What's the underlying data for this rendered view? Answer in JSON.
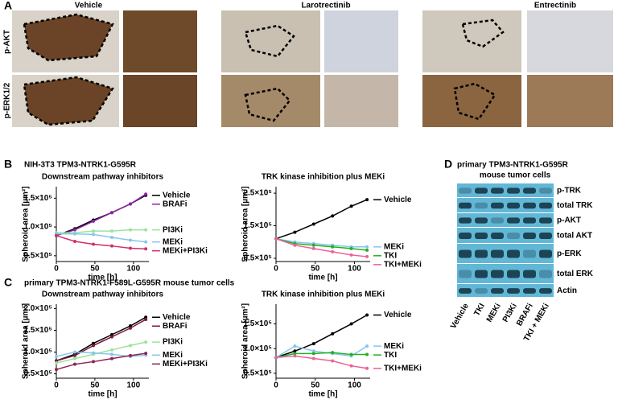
{
  "panel_a": {
    "letter": "A",
    "columns": [
      "Vehicle",
      "Larotrectinib",
      "Entrectinib"
    ],
    "rows": [
      "p-AKT",
      "p-ERK1/2"
    ]
  },
  "panel_b": {
    "letter": "B",
    "title": "NIH-3T3 TPM3-NTRK1-G595R"
  },
  "panel_c": {
    "letter": "C",
    "title": "primary TPM3-NTRK1-F589L-G595R mouse tumor cells"
  },
  "panel_d": {
    "letter": "D",
    "title": [
      "primary TPM3-NTRK1-G595R",
      "mouse tumor cells"
    ],
    "rows": [
      "p-TRK",
      "total TRK",
      "p-AKT",
      "total AKT",
      "p-ERK",
      "total ERK",
      "Actin"
    ],
    "lanes": [
      "Vehicle",
      "TKI",
      "MEKi",
      "PI3Ki",
      "BRAFi",
      "TKI + MEKi"
    ]
  },
  "chart_data": [
    {
      "type": "line",
      "title": "Downstream pathway inhibitors",
      "xlabel": "time [h]",
      "ylabel": "Spheroid area [µm²]",
      "x": [
        0,
        24,
        48,
        72,
        96,
        116
      ],
      "xlim": [
        0,
        120
      ],
      "xticks": [
        0,
        50,
        100
      ],
      "ylim": [
        40000,
        170000
      ],
      "yticks": [
        {
          "value": 50000,
          "label": "0.5×10⁵"
        },
        {
          "value": 100000,
          "label": "1.0×10⁵"
        },
        {
          "value": 150000,
          "label": "1.5×10⁵"
        }
      ],
      "series": [
        {
          "name": "Vehicle",
          "color": "#000000",
          "values": [
            85000,
            97000,
            112000,
            125000,
            140000,
            155000
          ]
        },
        {
          "name": "BRAFi",
          "color": "#8e24aa",
          "values": [
            85000,
            95000,
            110000,
            125000,
            140000,
            157000
          ]
        },
        {
          "name": "PI3Ki",
          "color": "#9be39b",
          "values": [
            90000,
            90000,
            93000,
            93000,
            95000,
            95000
          ]
        },
        {
          "name": "MEKi",
          "color": "#86c5ee",
          "values": [
            88000,
            88000,
            87000,
            82000,
            77000,
            74000
          ]
        },
        {
          "name": "MEKi+PI3Ki",
          "color": "#d0306a",
          "values": [
            85000,
            75000,
            70000,
            67000,
            63000,
            62000
          ]
        }
      ]
    },
    {
      "type": "line",
      "title": "TRK kinase inhibition plus MEKi",
      "xlabel": "time [h]",
      "ylabel": "Spheroid area [µm²]",
      "x": [
        0,
        24,
        48,
        72,
        96,
        116
      ],
      "xlim": [
        0,
        120
      ],
      "xticks": [
        0,
        50,
        100
      ],
      "ylim": [
        40000,
        270000
      ],
      "yticks": [
        {
          "value": 50000,
          "label": "0.5×10⁵"
        },
        {
          "value": 150000,
          "label": "1.5×10⁵"
        },
        {
          "value": 250000,
          "label": "2.5×10⁵"
        }
      ],
      "series": [
        {
          "name": "Vehicle",
          "color": "#000000",
          "values": [
            110000,
            130000,
            155000,
            180000,
            210000,
            230000
          ]
        },
        {
          "name": "MEKi",
          "color": "#86c5ee",
          "values": [
            110000,
            100000,
            95000,
            90000,
            85000,
            85000
          ]
        },
        {
          "name": "TKI",
          "color": "#22b022",
          "values": [
            110000,
            95000,
            90000,
            85000,
            80000,
            75000
          ]
        },
        {
          "name": "TKI+MEKi",
          "color": "#f0609a",
          "values": [
            110000,
            90000,
            80000,
            70000,
            60000,
            55000
          ]
        }
      ]
    },
    {
      "type": "line",
      "title": "Downstream pathway inhibitors",
      "xlabel": "time [h]",
      "ylabel": "Spheroid area [µm²]",
      "x": [
        0,
        24,
        48,
        72,
        96,
        116
      ],
      "xlim": [
        0,
        120
      ],
      "xticks": [
        0,
        50,
        100
      ],
      "ylim": [
        40000,
        210000
      ],
      "yticks": [
        {
          "value": 50000,
          "label": "0.5×10⁵"
        },
        {
          "value": 100000,
          "label": "1.0×10⁵"
        },
        {
          "value": 150000,
          "label": "1.5×10⁵"
        },
        {
          "value": 200000,
          "label": "2.0×10⁵"
        }
      ],
      "series": [
        {
          "name": "Vehicle",
          "color": "#000000",
          "values": [
            80000,
            95000,
            120000,
            140000,
            160000,
            180000
          ]
        },
        {
          "name": "BRAFi",
          "color": "#7a1b3c",
          "values": [
            80000,
            92000,
            115000,
            135000,
            155000,
            175000
          ]
        },
        {
          "name": "PI3Ki",
          "color": "#9be39b",
          "values": [
            75000,
            85000,
            95000,
            105000,
            115000,
            123000
          ]
        },
        {
          "name": "MEKi",
          "color": "#86c5ee",
          "values": [
            90000,
            100000,
            98000,
            95000,
            90000,
            93000
          ]
        },
        {
          "name": "MEKi+PI3Ki",
          "color": "#8b2252",
          "values": [
            60000,
            72000,
            78000,
            85000,
            92000,
            97000
          ]
        }
      ]
    },
    {
      "type": "line",
      "title": "TRK kinase inhibition plus MEKi",
      "xlabel": "time [h]",
      "ylabel": "Spheroid area [µm²]",
      "x": [
        0,
        24,
        48,
        72,
        96,
        116
      ],
      "xlim": [
        0,
        120
      ],
      "xticks": [
        0,
        50,
        100
      ],
      "ylim": [
        40000,
        190000
      ],
      "yticks": [
        {
          "value": 50000,
          "label": "0.5×10⁵"
        },
        {
          "value": 100000,
          "label": "1.0×10⁵"
        },
        {
          "value": 150000,
          "label": "1.5×10⁵"
        }
      ],
      "series": [
        {
          "name": "Vehicle",
          "color": "#000000",
          "values": [
            82000,
            95000,
            110000,
            130000,
            150000,
            168000
          ]
        },
        {
          "name": "MEKi",
          "color": "#86c5ee",
          "values": [
            82000,
            105000,
            95000,
            90000,
            85000,
            105000
          ]
        },
        {
          "name": "TKI",
          "color": "#22b022",
          "values": [
            82000,
            90000,
            90000,
            92000,
            88000,
            88000
          ]
        },
        {
          "name": "TKI+MEKi",
          "color": "#f0609a",
          "values": [
            82000,
            85000,
            80000,
            75000,
            65000,
            60000
          ]
        }
      ]
    }
  ]
}
